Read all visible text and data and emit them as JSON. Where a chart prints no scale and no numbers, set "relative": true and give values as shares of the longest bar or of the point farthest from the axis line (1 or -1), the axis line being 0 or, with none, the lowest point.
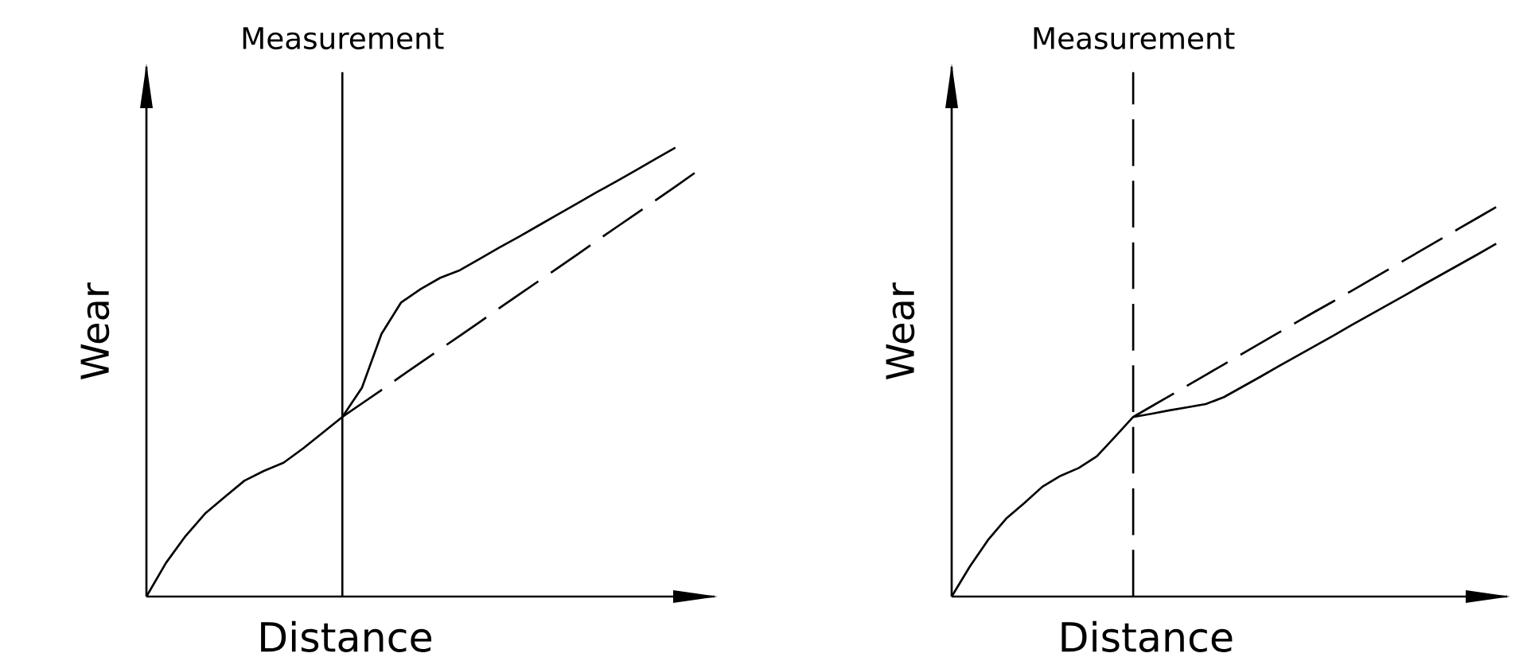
{
  "chart_data": [
    {
      "type": "line",
      "relative": true,
      "xlabel": "Distance",
      "ylabel": "Wear",
      "marker": "none",
      "categories": [
        null,
        null,
        null,
        null,
        null,
        null,
        null,
        null,
        null,
        null,
        null,
        null,
        null,
        null,
        null,
        null,
        null,
        null,
        null,
        null,
        null,
        null,
        null,
        null,
        null,
        null,
        null,
        null,
        null
      ],
      "ref_lines": [
        {
          "axis": "x",
          "label": "Measurement",
          "line_style": "solid",
          "color": "#000000"
        }
      ],
      "series": [
        {
          "color": "#000000",
          "line_style": "solid",
          "values": [
            0,
            0.075,
            0.135,
            0.185,
            0.222,
            0.258,
            0.28,
            0.298,
            0.33,
            0.365,
            0.4,
            0.465,
            0.585,
            0.655,
            0.685,
            0.71,
            0.727,
            0.752,
            0.777,
            0.801,
            0.826,
            0.851,
            0.876,
            0.901,
            0.925,
            0.95,
            0.975,
            1.0,
            null
          ]
        },
        {
          "color": "#000000",
          "line_style": "dashed",
          "values": [
            null,
            null,
            null,
            null,
            null,
            null,
            null,
            null,
            null,
            null,
            0.4,
            0.43,
            0.46,
            0.491,
            0.521,
            0.551,
            0.581,
            0.611,
            0.642,
            0.672,
            0.702,
            0.732,
            0.762,
            0.793,
            0.823,
            0.853,
            0.883,
            0.913,
            0.944
          ]
        }
      ]
    },
    {
      "type": "line",
      "relative": true,
      "xlabel": "Distance",
      "ylabel": "Wear",
      "marker": "none",
      "categories": [
        null,
        null,
        null,
        null,
        null,
        null,
        null,
        null,
        null,
        null,
        null,
        null,
        null,
        null,
        null,
        null,
        null,
        null,
        null,
        null,
        null,
        null,
        null,
        null,
        null,
        null,
        null,
        null,
        null,
        null,
        null
      ],
      "ref_lines": [
        {
          "axis": "x",
          "label": "Measurement",
          "line_style": "dashed",
          "color": "#000000"
        }
      ],
      "series": [
        {
          "color": "#000000",
          "line_style": "solid",
          "values": [
            0,
            0.077,
            0.145,
            0.2,
            0.24,
            0.282,
            0.31,
            0.33,
            0.36,
            0.41,
            0.461,
            0.469,
            0.478,
            0.486,
            0.494,
            0.512,
            0.538,
            0.564,
            0.591,
            0.617,
            0.643,
            0.669,
            0.696,
            0.722,
            0.748,
            0.774,
            0.801,
            0.827,
            0.853,
            0.879,
            0.906
          ]
        },
        {
          "color": "#000000",
          "line_style": "dashed",
          "values": [
            null,
            null,
            null,
            null,
            null,
            null,
            null,
            null,
            null,
            null,
            0.461,
            0.488,
            0.515,
            0.542,
            0.569,
            0.596,
            0.623,
            0.65,
            0.677,
            0.704,
            0.731,
            0.757,
            0.784,
            0.811,
            0.838,
            0.865,
            0.892,
            0.919,
            0.946,
            0.973,
            1.0
          ]
        }
      ]
    }
  ]
}
